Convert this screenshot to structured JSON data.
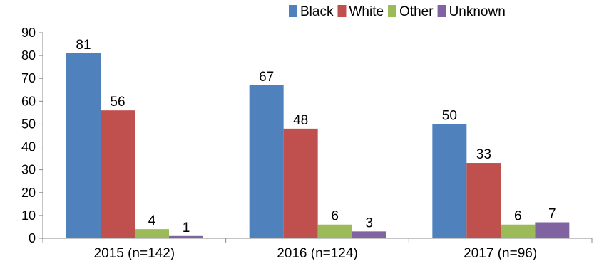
{
  "chart_data": {
    "type": "bar",
    "categories": [
      "2015 (n=142)",
      "2016 (n=124)",
      "2017 (n=96)"
    ],
    "series": [
      {
        "name": "Black",
        "values": [
          81,
          67,
          50
        ]
      },
      {
        "name": "White",
        "values": [
          56,
          48,
          33
        ]
      },
      {
        "name": "Other",
        "values": [
          4,
          6,
          6
        ]
      },
      {
        "name": "Unknown",
        "values": [
          1,
          3,
          7
        ]
      }
    ],
    "colors": [
      "#4f81bd",
      "#c0504d",
      "#9bbb59",
      "#8064a2"
    ],
    "title": "",
    "xlabel": "",
    "ylabel": "",
    "ylim": [
      0,
      90
    ],
    "yticks": [
      0,
      10,
      20,
      30,
      40,
      50,
      60,
      70,
      80,
      90
    ],
    "data_labels": true,
    "grid": false,
    "legend": "top-right"
  }
}
